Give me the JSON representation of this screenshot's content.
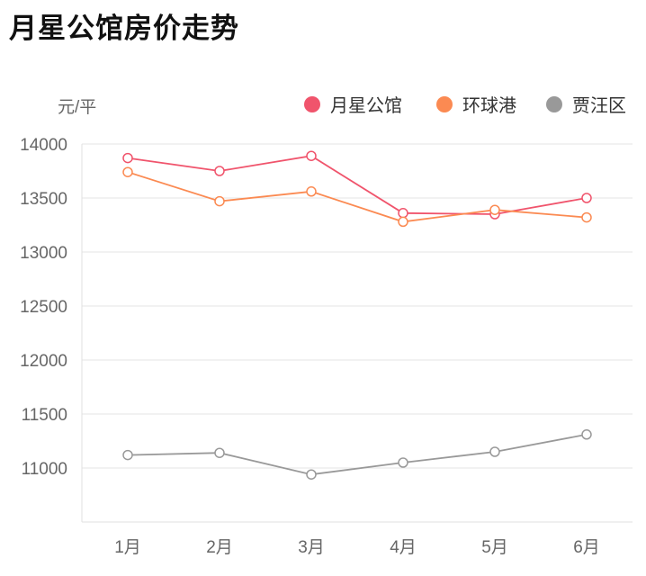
{
  "chart_data": {
    "type": "line",
    "title": "月星公馆房价走势",
    "ylabel": "元/平",
    "xlabel": "",
    "categories": [
      "1月",
      "2月",
      "3月",
      "4月",
      "5月",
      "6月"
    ],
    "ylim": [
      10500,
      14000
    ],
    "yticks": [
      11000,
      11500,
      12000,
      12500,
      13000,
      13500,
      14000
    ],
    "grid": true,
    "legend_position": "top-right",
    "series": [
      {
        "name": "月星公馆",
        "color": "#f0546c",
        "values": [
          13870,
          13750,
          13890,
          13360,
          13350,
          13500
        ]
      },
      {
        "name": "环球港",
        "color": "#fb8a52",
        "values": [
          13740,
          13470,
          13560,
          13280,
          13390,
          13320
        ]
      },
      {
        "name": "贾汪区",
        "color": "#999999",
        "values": [
          11120,
          11140,
          10940,
          11050,
          11150,
          11310
        ]
      }
    ]
  }
}
